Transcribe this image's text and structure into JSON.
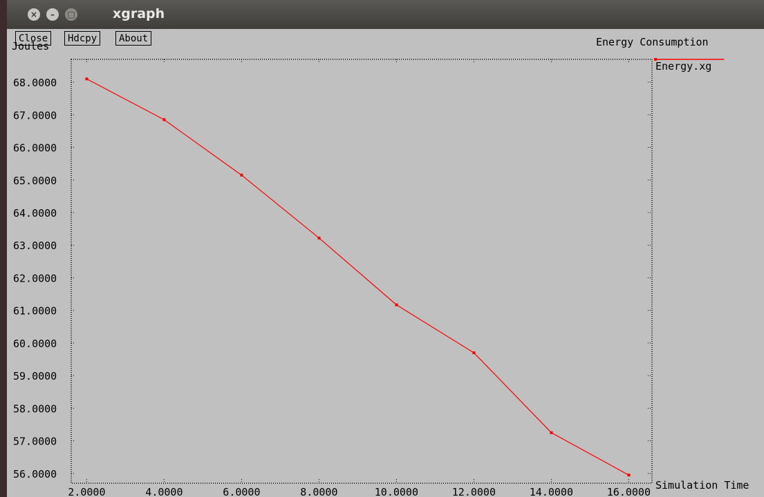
{
  "window": {
    "title": "xgraph"
  },
  "toolbar": {
    "close_label": "Close",
    "hdcpy_label": "Hdcpy",
    "about_label": "About"
  },
  "colors": {
    "series": "#ff0000",
    "background": "#c0c0c0"
  },
  "chart_data": {
    "type": "line",
    "title": "Energy Consumption",
    "xlabel": "Simulation Time",
    "ylabel": "Joules",
    "xlim": [
      1.6,
      16.6
    ],
    "ylim": [
      55.7,
      68.7
    ],
    "x_ticks": [
      "2.0000",
      "4.0000",
      "6.0000",
      "8.0000",
      "10.0000",
      "12.0000",
      "14.0000",
      "16.0000"
    ],
    "y_ticks": [
      "56.0000",
      "57.0000",
      "58.0000",
      "59.0000",
      "60.0000",
      "61.0000",
      "62.0000",
      "63.0000",
      "64.0000",
      "65.0000",
      "66.0000",
      "67.0000",
      "68.0000"
    ],
    "series": [
      {
        "name": "Energy.xg",
        "color": "#ff0000",
        "x": [
          2,
          4,
          6,
          8,
          10,
          12,
          14,
          16
        ],
        "y": [
          68.1,
          66.85,
          65.15,
          63.22,
          61.17,
          59.7,
          57.25,
          55.95
        ]
      }
    ],
    "grid": false,
    "legend": "right"
  }
}
